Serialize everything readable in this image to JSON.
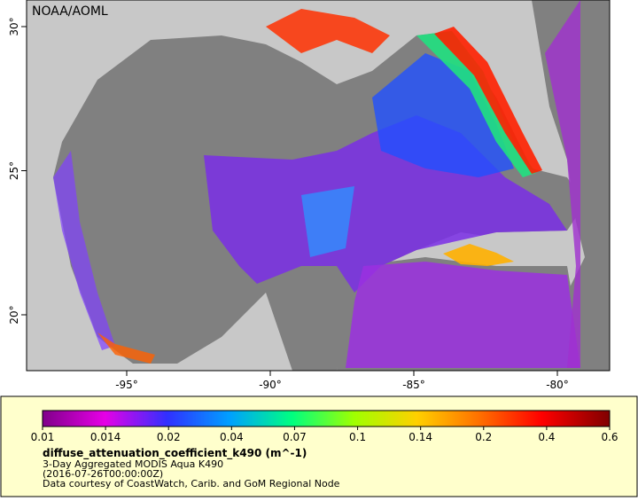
{
  "map": {
    "credit": "NOAA/AOML",
    "lon_ticks": [
      {
        "value": -95,
        "label": "-95°"
      },
      {
        "value": -90,
        "label": "-90°"
      },
      {
        "value": -85,
        "label": "-85°"
      },
      {
        "value": -80,
        "label": "-80°"
      }
    ],
    "lat_ticks": [
      {
        "value": 30,
        "label": "30°"
      },
      {
        "value": 25,
        "label": "25°"
      },
      {
        "value": 20,
        "label": "20°"
      }
    ],
    "colorbar": {
      "ticks": [
        0.01,
        0.014,
        0.02,
        0.04,
        0.07,
        0.1,
        0.14,
        0.2,
        0.4,
        0.6
      ]
    },
    "variable": "diffuse_attenuation_coefficient_k490 (m^-1)",
    "dataset": "3-Day Aggregated MODIS Aqua K490",
    "time": "(2016-07-26T00:00:00Z)",
    "courtesy": "Data courtesy of CoastWatch, Carib. and GoM Regional Node"
  }
}
